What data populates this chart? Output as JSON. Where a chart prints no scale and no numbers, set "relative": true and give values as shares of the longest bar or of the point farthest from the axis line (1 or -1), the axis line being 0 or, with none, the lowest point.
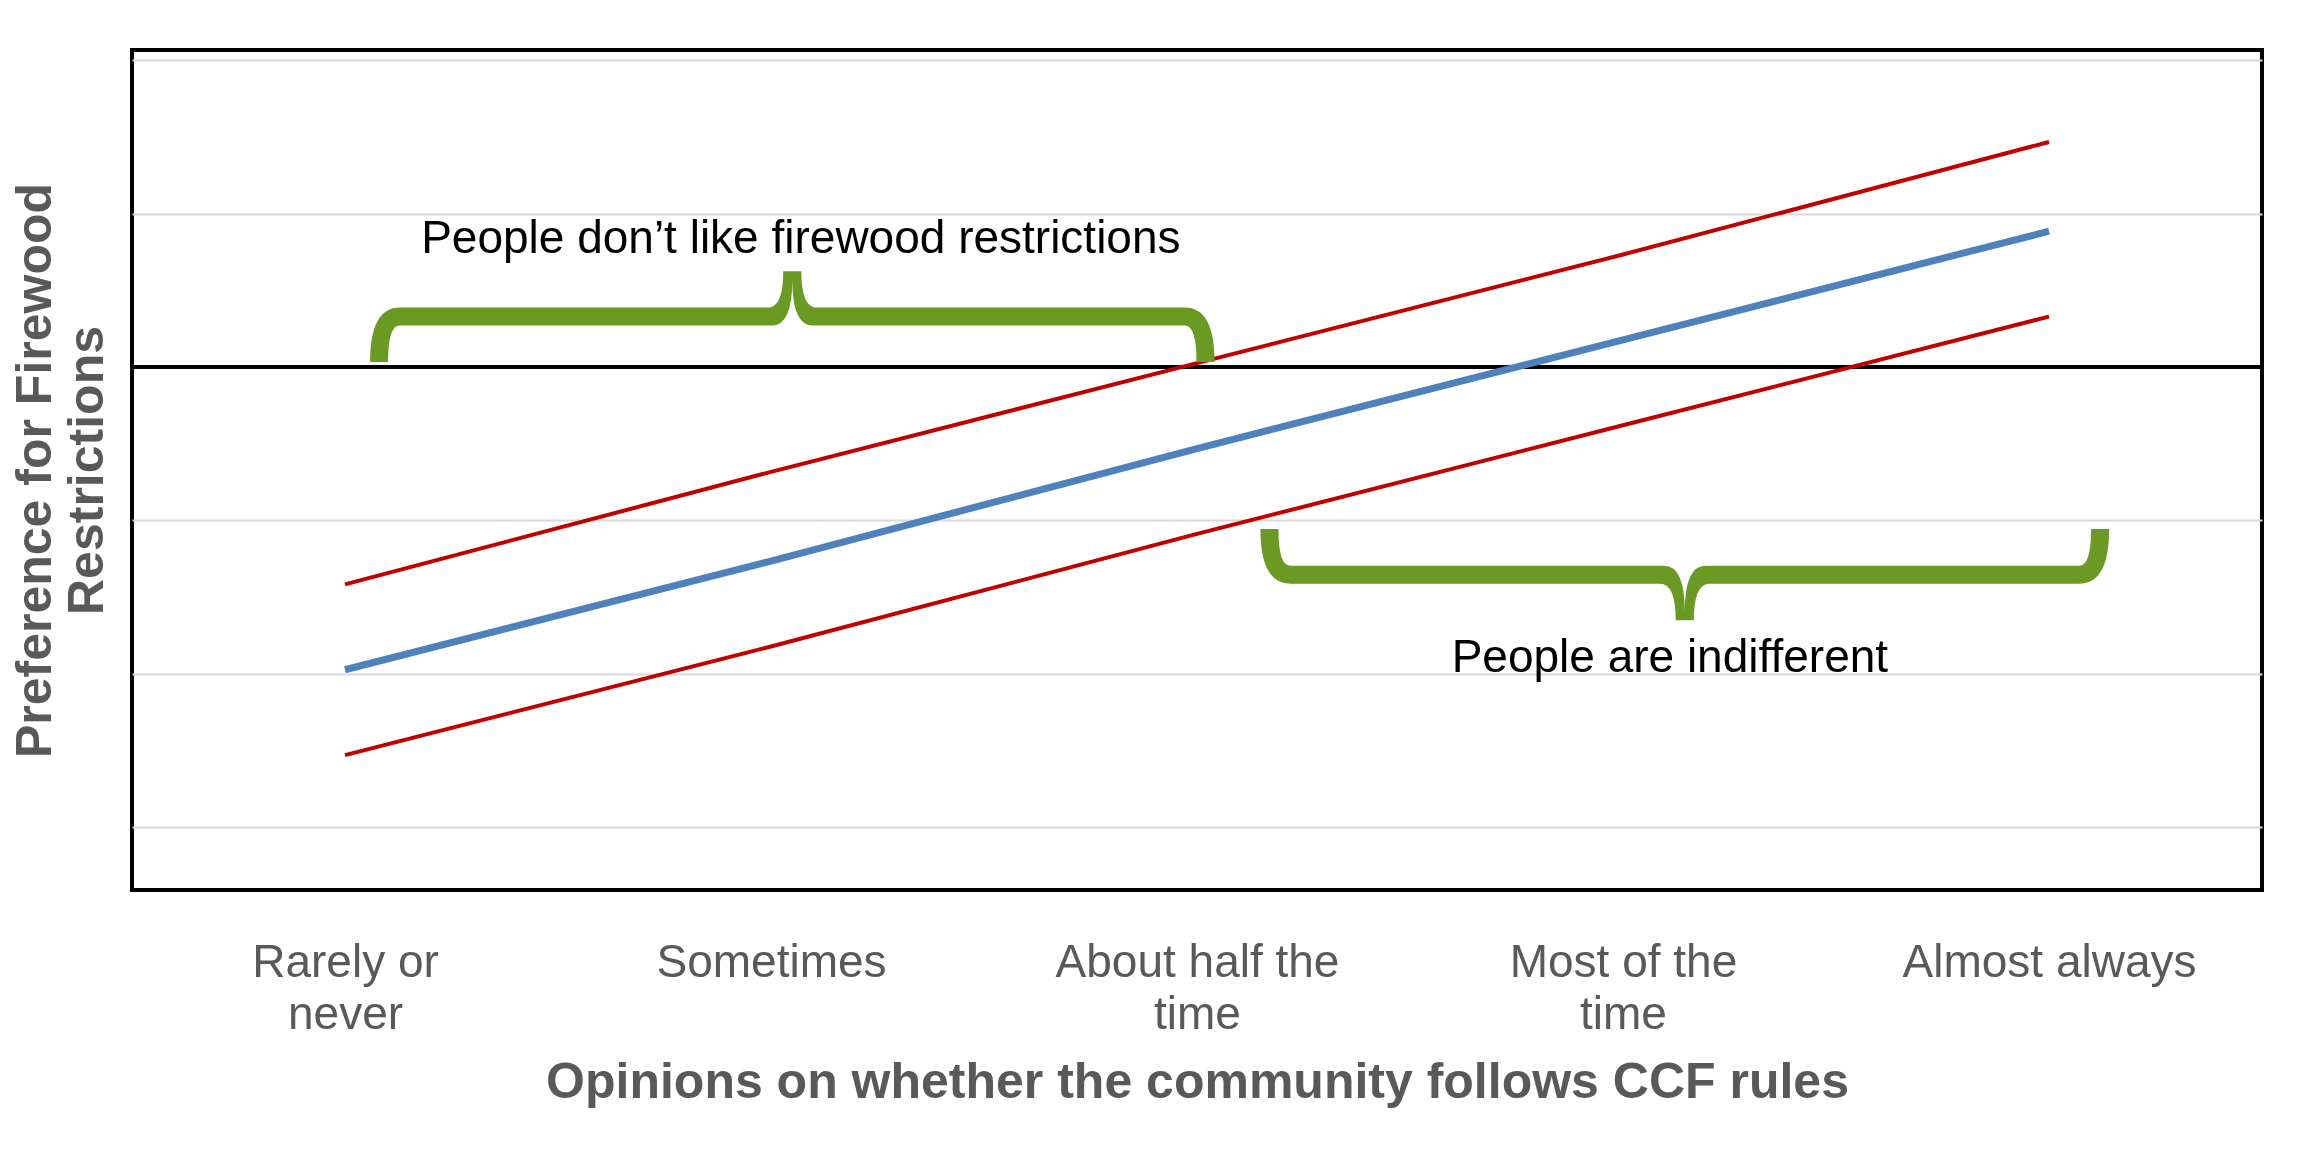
{
  "chart_data": {
    "type": "line",
    "relative": true,
    "xlabel": "Opinions on whether the community follows CCF rules",
    "ylabel": "Preference for Firewood Restrictions",
    "categories": [
      "Rarely or never",
      "Sometimes",
      "About half the time",
      "Most of the time",
      "Almost always"
    ],
    "series": [
      {
        "color": "#c00000",
        "values": [
          -0.56,
          -0.27,
          0.01,
          0.29,
          0.58
        ]
      },
      {
        "color": "#4f81bd",
        "values": [
          -0.78,
          -0.5,
          -0.21,
          0.07,
          0.35
        ]
      },
      {
        "color": "#c00000",
        "values": [
          -1,
          -0.72,
          -0.43,
          -0.15,
          0.13
        ]
      }
    ],
    "grid": "y",
    "marker": "none",
    "line_style": "solid",
    "annotations": [
      "People don’t like firewood restrictions",
      "People are indifferent"
    ]
  }
}
